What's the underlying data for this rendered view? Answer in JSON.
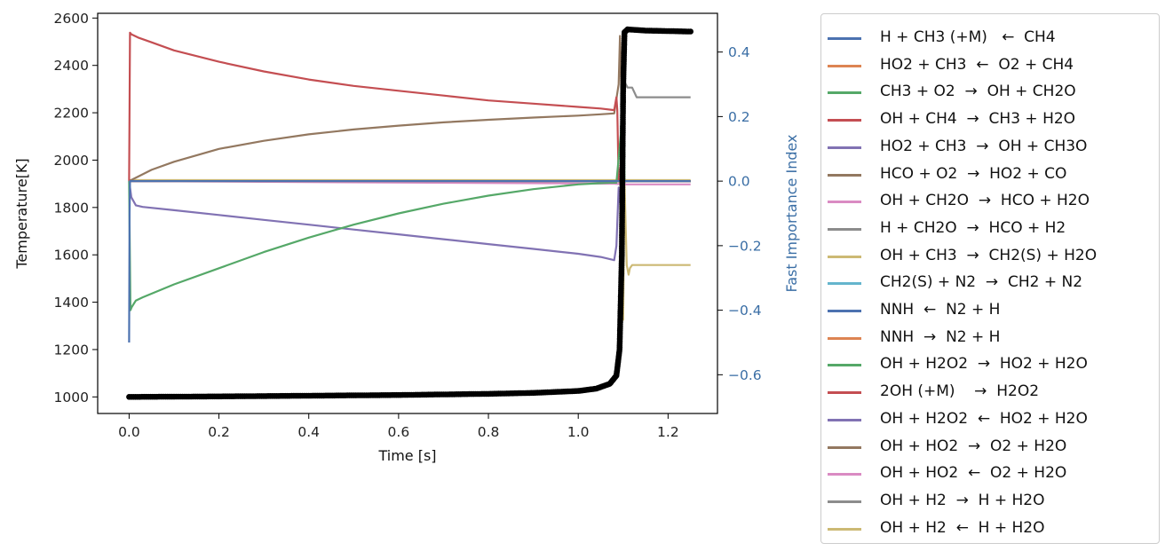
{
  "chart_data": {
    "type": "line",
    "xlabel": "Time [s]",
    "ylabel_left": "Temperature[K]",
    "ylabel_right": "Fast Importance Index",
    "xlim": [
      -0.07,
      1.31
    ],
    "ylim_left": [
      930,
      2620
    ],
    "ylim_right": [
      -0.72,
      0.52
    ],
    "xticks": [
      0.0,
      0.2,
      0.4,
      0.6,
      0.8,
      1.0,
      1.2
    ],
    "xtick_labels": [
      "0.0",
      "0.2",
      "0.4",
      "0.6",
      "0.8",
      "1.0",
      "1.2"
    ],
    "yticks_left": [
      1000,
      1200,
      1400,
      1600,
      1800,
      2000,
      2200,
      2400,
      2600
    ],
    "ytick_left_labels": [
      "1000",
      "1200",
      "1400",
      "1600",
      "1800",
      "2000",
      "2200",
      "2400",
      "2600"
    ],
    "yticks_right": [
      -0.6,
      -0.4,
      -0.2,
      0.0,
      0.2,
      0.4
    ],
    "ytick_right_labels": [
      "−0.6",
      "−0.4",
      "−0.2",
      "0.0",
      "0.2",
      "0.4"
    ],
    "temperature_series": {
      "name": "",
      "color": "#000000",
      "x": [
        0.0,
        0.2,
        0.4,
        0.6,
        0.8,
        0.9,
        1.0,
        1.04,
        1.07,
        1.085,
        1.092,
        1.097,
        1.1,
        1.103,
        1.11,
        1.15,
        1.2,
        1.25
      ],
      "y": [
        1000,
        1002,
        1005,
        1008,
        1013,
        1017,
        1025,
        1035,
        1055,
        1090,
        1200,
        1600,
        2300,
        2540,
        2552,
        2547,
        2545,
        2543
      ]
    },
    "series": [
      {
        "name": "H + CH3 (+M)   ←  CH4",
        "color": "#4c72b0",
        "x": [
          0.0,
          0.001,
          0.002,
          0.005,
          1.08,
          1.1,
          1.25
        ],
        "y": [
          -0.5,
          -0.1,
          0.0,
          0.0,
          0.0,
          0.0,
          0.0
        ]
      },
      {
        "name": "HO2 + CH3  ←  O2 + CH4",
        "color": "#dd8452",
        "x": [
          0.0,
          1.25
        ],
        "y": [
          0.0,
          0.0
        ]
      },
      {
        "name": "CH3 + O2  →  OH + CH2O",
        "color": "#55a868",
        "x": [
          0.0,
          0.003,
          0.006,
          0.015,
          0.03,
          0.1,
          0.2,
          0.3,
          0.4,
          0.5,
          0.6,
          0.7,
          0.8,
          0.9,
          1.0,
          1.07,
          1.085,
          1.095,
          1.1,
          1.103,
          1.106,
          1.11,
          1.25
        ],
        "y": [
          0.0,
          -0.4,
          -0.39,
          -0.37,
          -0.36,
          -0.32,
          -0.27,
          -0.22,
          -0.175,
          -0.135,
          -0.1,
          -0.07,
          -0.045,
          -0.025,
          -0.01,
          -0.005,
          -0.005,
          0.15,
          0.43,
          0.0,
          0.0,
          0.0,
          0.0
        ]
      },
      {
        "name": "OH + CH4  →  CH3 + H2O",
        "color": "#c44e52",
        "x": [
          0.0,
          0.002,
          0.005,
          0.02,
          0.05,
          0.1,
          0.2,
          0.3,
          0.4,
          0.5,
          0.6,
          0.7,
          0.8,
          0.9,
          1.0,
          1.05,
          1.08,
          1.085,
          1.087,
          1.09,
          1.1,
          1.25
        ],
        "y": [
          0.0,
          0.46,
          0.455,
          0.445,
          0.43,
          0.405,
          0.37,
          0.34,
          0.315,
          0.295,
          0.28,
          0.265,
          0.25,
          0.24,
          0.23,
          0.225,
          0.22,
          0.26,
          0.22,
          0.0,
          0.0,
          0.0
        ]
      },
      {
        "name": "HO2 + CH3  →  OH + CH3O",
        "color": "#8172b3",
        "x": [
          0.0,
          0.005,
          0.015,
          0.03,
          0.1,
          0.2,
          0.3,
          0.4,
          0.5,
          0.6,
          0.7,
          0.8,
          0.9,
          1.0,
          1.05,
          1.08,
          1.085,
          1.09,
          1.095,
          1.1,
          1.25
        ],
        "y": [
          0.0,
          -0.05,
          -0.075,
          -0.08,
          -0.09,
          -0.105,
          -0.12,
          -0.135,
          -0.15,
          -0.165,
          -0.18,
          -0.195,
          -0.21,
          -0.225,
          -0.235,
          -0.245,
          -0.2,
          -0.02,
          -0.09,
          0.0,
          0.0
        ]
      },
      {
        "name": "HCO + O2  →  HO2 + CO",
        "color": "#937860",
        "x": [
          0.0,
          0.05,
          0.1,
          0.2,
          0.3,
          0.4,
          0.5,
          0.6,
          0.7,
          0.8,
          0.9,
          1.0,
          1.05,
          1.08,
          1.09,
          1.093,
          1.097,
          1.1,
          1.25
        ],
        "y": [
          0.0,
          0.035,
          0.06,
          0.1,
          0.125,
          0.145,
          0.16,
          0.172,
          0.182,
          0.19,
          0.197,
          0.203,
          0.207,
          0.21,
          0.3,
          0.45,
          0.2,
          0.0,
          0.0
        ]
      },
      {
        "name": "OH + CH2O  →  HCO + H2O",
        "color": "#da8bc3",
        "x": [
          0.0,
          1.08,
          1.1,
          1.25
        ],
        "y": [
          0.0,
          -0.008,
          -0.01,
          -0.01
        ]
      },
      {
        "name": "H + CH2O  →  HCO + H2",
        "color": "#8c8c8c",
        "x": [
          0.0,
          1.09,
          1.095,
          1.1,
          1.103,
          1.106,
          1.11,
          1.113,
          1.12,
          1.13,
          1.25
        ],
        "y": [
          0.0,
          0.0,
          0.05,
          0.45,
          0.28,
          0.3,
          0.29,
          0.29,
          0.29,
          0.26,
          0.26
        ]
      },
      {
        "name": "OH + CH3  →  CH2(S) + H2O",
        "color": "#ccb974",
        "x": [
          0.0,
          1.09,
          1.097,
          1.1,
          1.103,
          1.108,
          1.112,
          1.115,
          1.12,
          1.25
        ],
        "y": [
          0.0,
          0.0,
          -0.02,
          -0.43,
          0.0,
          -0.26,
          -0.29,
          -0.27,
          -0.26,
          -0.26
        ]
      },
      {
        "name": "CH2(S) + N2  →  CH2 + N2",
        "color": "#64b5cd",
        "x": [
          0.0,
          1.25
        ],
        "y": [
          0.0,
          0.0
        ]
      },
      {
        "name": "NNH  ←  N2 + H",
        "color": "#4c72b0",
        "x": [
          0.0,
          1.25
        ],
        "y": [
          0.0,
          0.0
        ]
      },
      {
        "name": "NNH  →  N2 + H",
        "color": "#dd8452",
        "x": [
          0.0,
          1.25
        ],
        "y": [
          0.0,
          0.0
        ]
      },
      {
        "name": "OH + H2O2  →  HO2 + H2O",
        "color": "#55a868",
        "x": [
          0.0,
          1.25
        ],
        "y": [
          0.0,
          0.0
        ]
      },
      {
        "name": "2OH (+M)    →  H2O2",
        "color": "#c44e52",
        "x": [
          0.0,
          1.25
        ],
        "y": [
          0.0,
          0.0
        ]
      },
      {
        "name": "OH + H2O2  ←  HO2 + H2O",
        "color": "#8172b3",
        "x": [
          0.0,
          1.25
        ],
        "y": [
          0.0,
          0.0
        ]
      },
      {
        "name": "OH + HO2  →  O2 + H2O",
        "color": "#937860",
        "x": [
          0.0,
          1.25
        ],
        "y": [
          0.0,
          0.0
        ]
      },
      {
        "name": "OH + HO2  ←  O2 + H2O",
        "color": "#da8bc3",
        "x": [
          0.0,
          1.25
        ],
        "y": [
          0.0,
          0.0
        ]
      },
      {
        "name": "OH + H2  →  H + H2O",
        "color": "#8c8c8c",
        "x": [
          0.0,
          1.25
        ],
        "y": [
          0.0,
          0.0
        ]
      },
      {
        "name": "OH + H2  ←  H + H2O",
        "color": "#ccb974",
        "x": [
          0.0,
          1.1,
          1.25
        ],
        "y": [
          0.003,
          0.003,
          0.003
        ]
      }
    ],
    "legend_position": "outside-right",
    "grid": false
  }
}
